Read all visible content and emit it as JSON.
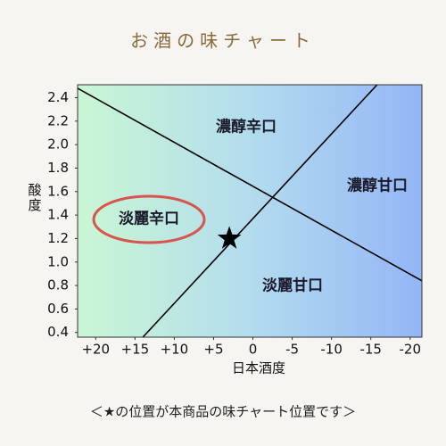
{
  "chart_data": {
    "type": "scatter",
    "title": "お酒の味チャート",
    "xlabel": "日本酒度",
    "ylabel": "酸度",
    "footnote": "＜★の位置が本商品の味チャート位置です＞",
    "xlim": [
      22.3,
      -21.5
    ],
    "ylim": [
      0.36,
      2.51
    ],
    "xticks": [
      {
        "value": 20,
        "label": "+20"
      },
      {
        "value": 15,
        "label": "+15"
      },
      {
        "value": 10,
        "label": "+10"
      },
      {
        "value": 5,
        "label": "+5"
      },
      0,
      -5,
      -10,
      -15,
      -20
    ],
    "yticks": [
      0.4,
      0.6,
      0.8,
      {
        "value": 1.0,
        "label": "1.0"
      },
      1.2,
      1.4,
      1.6,
      1.8,
      {
        "value": 2.0,
        "label": "2.0"
      },
      2.2,
      2.4
    ],
    "lines": [
      {
        "x": [
          22.3,
          -21.5
        ],
        "values": [
          2.48,
          0.84
        ],
        "color": "#000000"
      },
      {
        "x": [
          14,
          -15.8
        ],
        "values": [
          0.36,
          2.51
        ],
        "color": "#000000"
      }
    ],
    "point": {
      "x": 3,
      "y": 1.2,
      "color": "#000000"
    },
    "regions": [
      "濃醇辛口",
      "濃醇甘口",
      "淡麗辛口",
      "淡麗甘口"
    ]
  }
}
